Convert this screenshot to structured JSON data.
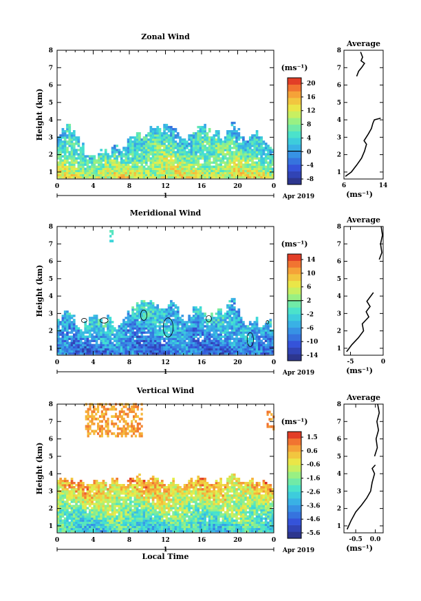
{
  "chart_data": [
    {
      "type": "heatmap",
      "title": "Zonal Wind",
      "ylabel": "Height (km)",
      "unit_label": "(ms⁻¹)",
      "xlim": [
        0,
        24
      ],
      "ylim": [
        0.6,
        8
      ],
      "x_ticks": [
        "0",
        "4",
        "8",
        "12",
        "16",
        "20",
        "0"
      ],
      "y_ticks": [
        "1",
        "2",
        "3",
        "4",
        "5",
        "6",
        "7",
        "8"
      ],
      "time_bar": {
        "day": "1",
        "month_year": "Apr 2019"
      },
      "colorbar": {
        "ticks": [
          "20",
          "16",
          "12",
          "8",
          "4",
          "0",
          "-4",
          "-8"
        ],
        "min": -10,
        "max": 22,
        "zero_line": 0
      },
      "contour_zero": false,
      "top_series": [
        3.1,
        3.4,
        3.6,
        3.3,
        2.9,
        2.5,
        2.0,
        1.8,
        1.9,
        2.1,
        2.2,
        2.0,
        2.3,
        2.5,
        2.1,
        2.4,
        2.8,
        3.0,
        3.3,
        2.9,
        3.2,
        3.5,
        3.6,
        3.4,
        3.6,
        3.7,
        3.5,
        3.3,
        3.0,
        2.8,
        3.1,
        3.3,
        3.6,
        3.7,
        3.4,
        3.1,
        3.3,
        3.0,
        2.9,
        3.5,
        3.9,
        3.5,
        3.0,
        2.8,
        3.0,
        3.2,
        3.0,
        2.7,
        2.5,
        2.3
      ],
      "value_profile": {
        "surface": 12,
        "top": 2
      },
      "islands": [],
      "average_panel": {
        "title": "Average",
        "xlim": [
          6,
          14
        ],
        "x_ticks": [
          "6",
          "14"
        ],
        "xlabel": "(ms⁻¹)",
        "profile": [
          [
            6.3,
            0.75
          ],
          [
            7.5,
            1.0
          ],
          [
            8.6,
            1.4
          ],
          [
            9.6,
            1.8
          ],
          [
            10.2,
            2.2
          ],
          [
            10.6,
            2.6
          ],
          [
            10.1,
            2.8
          ],
          [
            11.0,
            3.2
          ],
          [
            11.6,
            3.5
          ],
          [
            11.9,
            3.8
          ],
          [
            12.2,
            4.0
          ],
          [
            13.5,
            4.1
          ]
        ],
        "profile_upper": [
          [
            8.6,
            6.5
          ],
          [
            9.0,
            6.8
          ],
          [
            9.6,
            7.0
          ],
          [
            10.2,
            7.25
          ],
          [
            9.5,
            7.4
          ],
          [
            9.8,
            7.6
          ],
          [
            9.4,
            7.9
          ]
        ]
      }
    },
    {
      "type": "heatmap",
      "title": "Meridional Wind",
      "ylabel": "Height (km)",
      "unit_label": "(ms⁻¹)",
      "xlim": [
        0,
        24
      ],
      "ylim": [
        0.6,
        8
      ],
      "x_ticks": [
        "0",
        "4",
        "8",
        "12",
        "16",
        "20",
        "0"
      ],
      "y_ticks": [
        "1",
        "2",
        "3",
        "4",
        "5",
        "6",
        "7",
        "8"
      ],
      "time_bar": {
        "day": "1",
        "month_year": "Apr 2019"
      },
      "colorbar": {
        "ticks": [
          "14",
          "10",
          "6",
          "2",
          "-2",
          "-6",
          "-10",
          "-14"
        ],
        "min": -16,
        "max": 16,
        "zero_line": 2
      },
      "contour_zero": true,
      "top_series": [
        2.6,
        3.0,
        3.1,
        2.8,
        2.3,
        2.0,
        2.4,
        2.7,
        2.9,
        2.6,
        2.5,
        2.8,
        2.4,
        2.1,
        2.3,
        2.6,
        3.1,
        3.4,
        3.6,
        3.7,
        3.5,
        3.6,
        3.5,
        3.3,
        3.2,
        3.4,
        3.6,
        3.3,
        2.7,
        2.5,
        2.8,
        3.2,
        3.4,
        2.9,
        2.6,
        2.9,
        3.1,
        3.3,
        3.0,
        3.6,
        3.9,
        3.3,
        2.6,
        2.3,
        2.4,
        2.6,
        2.1,
        2.3,
        2.6,
        2.2
      ],
      "value_profile": {
        "surface": -9,
        "top": -3
      },
      "islands": [
        {
          "x": [
            5.8,
            6.2
          ],
          "y": [
            7.1,
            7.7
          ]
        }
      ],
      "average_panel": {
        "title": "Average",
        "xlim": [
          -6,
          0
        ],
        "x_ticks": [
          "-5",
          "0"
        ],
        "xlabel": "(ms⁻¹)",
        "profile": [
          [
            -5.6,
            0.8
          ],
          [
            -4.8,
            1.2
          ],
          [
            -3.8,
            1.6
          ],
          [
            -3.0,
            2.0
          ],
          [
            -3.2,
            2.4
          ],
          [
            -2.2,
            2.8
          ],
          [
            -2.6,
            3.1
          ],
          [
            -2.0,
            3.4
          ],
          [
            -2.5,
            3.7
          ],
          [
            -1.5,
            4.2
          ]
        ],
        "profile_upper": [
          [
            -0.6,
            6.1
          ],
          [
            -0.2,
            6.5
          ],
          [
            -0.4,
            7.0
          ],
          [
            -0.1,
            7.5
          ],
          [
            -0.3,
            8.0
          ]
        ]
      }
    },
    {
      "type": "heatmap",
      "title": "Vertical Wind",
      "ylabel": "Height (km)",
      "xlabel": "Local Time",
      "unit_label": "(ms⁻¹)",
      "xlim": [
        0,
        24
      ],
      "ylim": [
        0.6,
        8
      ],
      "x_ticks": [
        "0",
        "4",
        "8",
        "12",
        "16",
        "20",
        "0"
      ],
      "y_ticks": [
        "1",
        "2",
        "3",
        "4",
        "5",
        "6",
        "7",
        "8"
      ],
      "time_bar": {
        "day": "1",
        "month_year": "Apr 2019"
      },
      "colorbar": {
        "ticks": [
          "1.5",
          "0.6",
          "-0.6",
          "-1.6",
          "-2.6",
          "-3.6",
          "-4.6",
          "-5.6"
        ],
        "min": -6.1,
        "max": 2.0,
        "zero_line": null
      },
      "contour_zero": false,
      "top_series": [
        3.6,
        3.7,
        3.5,
        3.6,
        3.4,
        3.6,
        3.3,
        3.5,
        3.6,
        3.4,
        3.5,
        3.3,
        3.6,
        3.7,
        3.5,
        3.4,
        3.6,
        3.7,
        3.8,
        3.6,
        3.5,
        3.7,
        3.8,
        3.6,
        3.5,
        3.3,
        3.6,
        3.5,
        3.2,
        3.4,
        3.6,
        3.7,
        3.8,
        3.6,
        3.5,
        3.4,
        3.6,
        3.7,
        3.5,
        3.9,
        4.0,
        3.6,
        3.4,
        3.5,
        3.6,
        3.3,
        3.4,
        3.5,
        3.3,
        3.2
      ],
      "value_profile": {
        "surface": -2.8,
        "top": 0.5
      },
      "islands": [
        {
          "x": [
            3.1,
            9.4
          ],
          "y": [
            6.1,
            8.0
          ]
        },
        {
          "x": [
            23.2,
            24
          ],
          "y": [
            6.5,
            7.6
          ]
        }
      ],
      "average_panel": {
        "title": "Average",
        "xlim": [
          -0.8,
          0.2
        ],
        "x_ticks": [
          "-0.5",
          "0.0"
        ],
        "xlabel": "(ms⁻¹)",
        "profile": [
          [
            -0.72,
            0.8
          ],
          [
            -0.62,
            1.3
          ],
          [
            -0.5,
            1.8
          ],
          [
            -0.35,
            2.2
          ],
          [
            -0.22,
            2.6
          ],
          [
            -0.12,
            3.0
          ],
          [
            -0.08,
            3.5
          ],
          [
            -0.02,
            4.0
          ],
          [
            -0.08,
            4.3
          ],
          [
            0.0,
            4.5
          ]
        ],
        "profile_upper": [
          [
            -0.02,
            5.0
          ],
          [
            0.05,
            5.5
          ],
          [
            0.02,
            6.0
          ],
          [
            0.08,
            6.5
          ],
          [
            0.04,
            7.0
          ],
          [
            0.1,
            7.5
          ],
          [
            0.06,
            8.0
          ]
        ]
      }
    }
  ]
}
